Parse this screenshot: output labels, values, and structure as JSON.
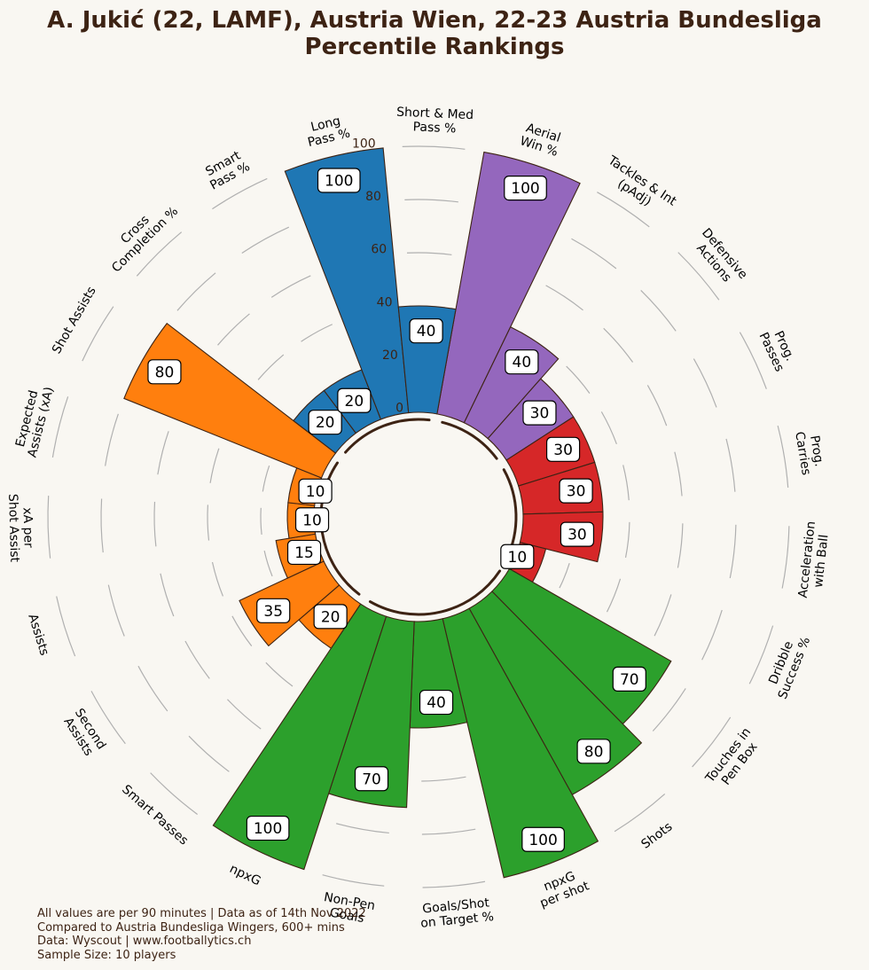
{
  "title_line1": "A. Jukić (22, LAMF), Austria Wien, 22-23 Austria Bundesliga",
  "title_line2": "Percentile Rankings",
  "footer": [
    "All values are per 90 minutes | Data as of 14th Nov 2022",
    "Compared to Austria Bundesliga Wingers, 600+ mins",
    "Data: Wyscout | www.footballytics.ch",
    "Sample Size: 10 players"
  ],
  "chart_data": {
    "type": "polar-bar",
    "rlim": [
      0,
      100
    ],
    "radial_ticks": [
      "0",
      "20",
      "40",
      "60",
      "80",
      "100"
    ],
    "categories": [
      {
        "label": [
          "Aerial",
          "Win %"
        ],
        "value": 100,
        "group": "defending"
      },
      {
        "label": [
          "Tackles & Int",
          "(pAdj)"
        ],
        "value": 40,
        "group": "defending"
      },
      {
        "label": [
          "Defensive",
          "Actions"
        ],
        "value": 30,
        "group": "defending"
      },
      {
        "label": [
          "Prog.",
          "Passes"
        ],
        "value": 30,
        "group": "possession"
      },
      {
        "label": [
          "Prog.",
          "Carries"
        ],
        "value": 30,
        "group": "possession"
      },
      {
        "label": [
          "Acceleration",
          "with Ball"
        ],
        "value": 30,
        "group": "possession"
      },
      {
        "label": [
          "Dribble",
          "Success %"
        ],
        "value": 10,
        "group": "possession"
      },
      {
        "label": [
          "Touches in",
          "Pen Box"
        ],
        "value": 70,
        "group": "shooting"
      },
      {
        "label": [
          "Shots"
        ],
        "value": 80,
        "group": "shooting"
      },
      {
        "label": [
          "npxG",
          "per shot"
        ],
        "value": 100,
        "group": "shooting"
      },
      {
        "label": [
          "Goals/Shot",
          "on Target %"
        ],
        "value": 40,
        "group": "shooting"
      },
      {
        "label": [
          "Non-Pen",
          "Goals"
        ],
        "value": 70,
        "group": "shooting"
      },
      {
        "label": [
          "npxG"
        ],
        "value": 100,
        "group": "shooting"
      },
      {
        "label": [
          "Smart Passes"
        ],
        "value": 20,
        "group": "creation"
      },
      {
        "label": [
          "Second",
          "Assists"
        ],
        "value": 35,
        "group": "creation"
      },
      {
        "label": [
          "Assists"
        ],
        "value": 15,
        "group": "creation"
      },
      {
        "label": [
          "xA per",
          "Shot Assist"
        ],
        "value": 10,
        "group": "creation"
      },
      {
        "label": [
          "Expected",
          "Assists (xA)"
        ],
        "value": 10,
        "group": "creation"
      },
      {
        "label": [
          "Shot Assists"
        ],
        "value": 80,
        "group": "creation"
      },
      {
        "label": [
          "Cross",
          "Completion %"
        ],
        "value": 20,
        "group": "passing"
      },
      {
        "label": [
          "Smart",
          "Pass %"
        ],
        "value": 20,
        "group": "passing"
      },
      {
        "label": [
          "Long",
          "Pass %"
        ],
        "value": 100,
        "group": "passing"
      },
      {
        "label": [
          "Short & Med",
          "Pass %"
        ],
        "value": 40,
        "group": "passing"
      }
    ],
    "group_colors": {
      "defending": "#9467bd",
      "possession": "#d62728",
      "shooting": "#2ca02c",
      "creation": "#ff7f0e",
      "passing": "#1f77b4"
    },
    "grid": true
  }
}
